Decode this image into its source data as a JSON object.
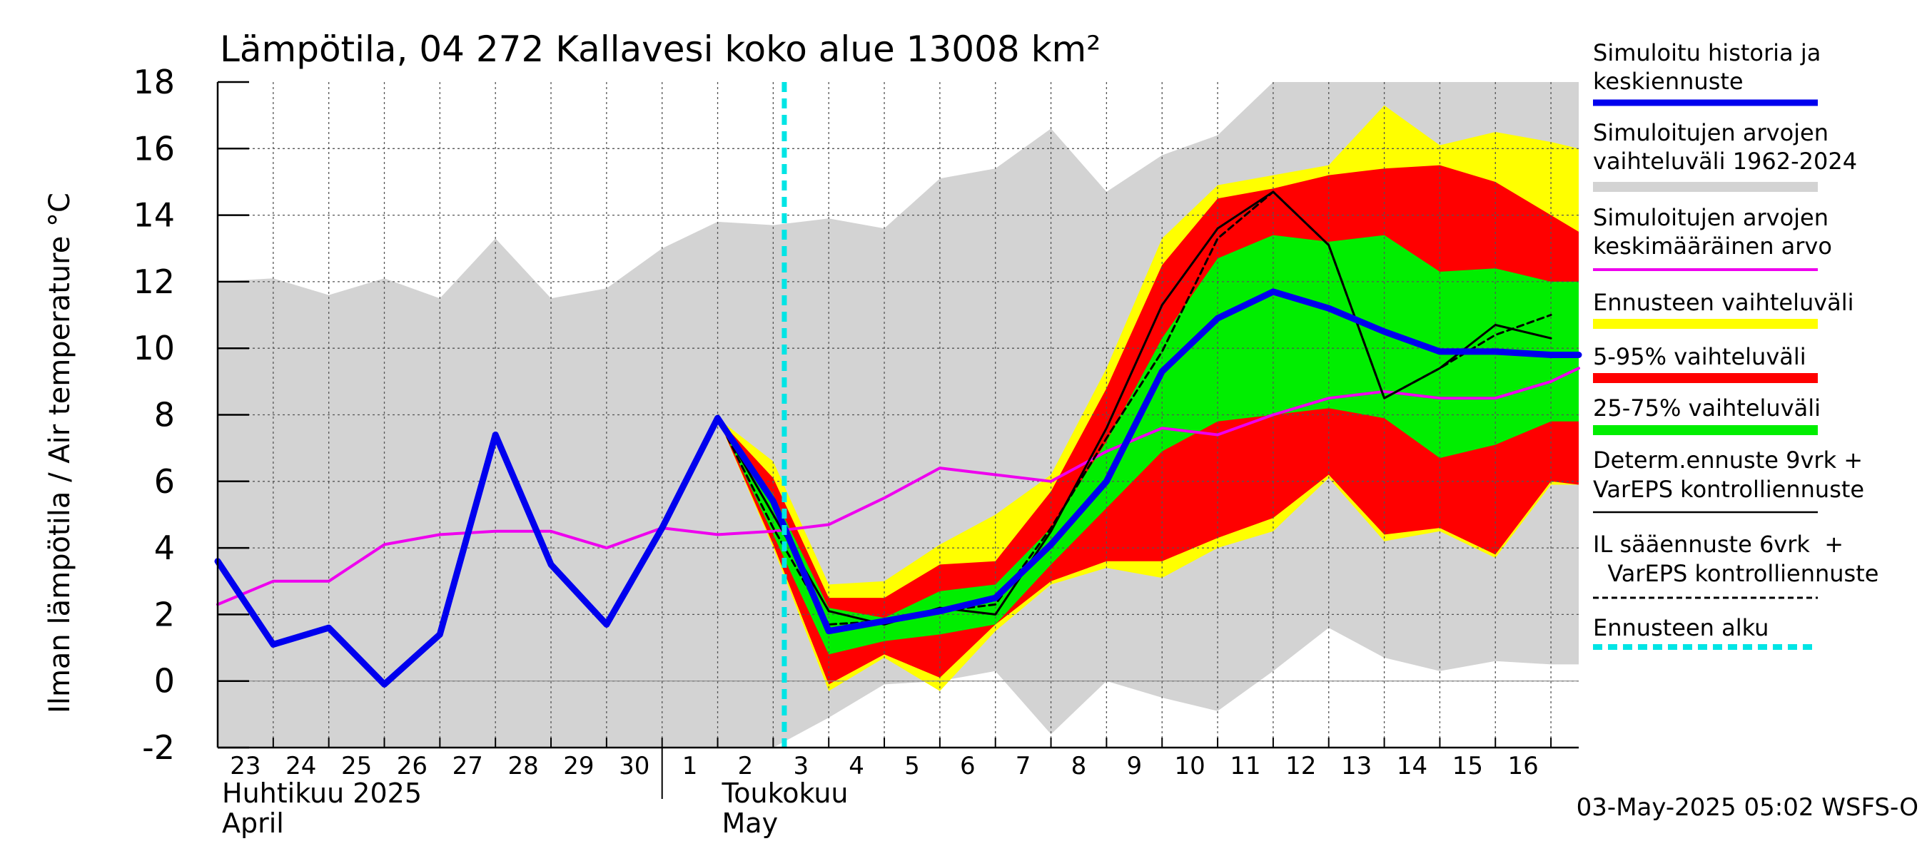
{
  "chart_data": {
    "type": "line",
    "title": "Lämpötila, 04 272 Kallavesi koko alue 13008 km²",
    "ylabel": "Ilman lämpötila / Air temperature   °C",
    "ylim": [
      -2,
      18
    ],
    "yticks": [
      -2,
      0,
      2,
      4,
      6,
      8,
      10,
      12,
      14,
      16,
      18
    ],
    "x_day_offsets": [
      0,
      1,
      2,
      3,
      4,
      5,
      6,
      7,
      8,
      9,
      10,
      11,
      12,
      13,
      14,
      15,
      16,
      17,
      18,
      19,
      20,
      21,
      22,
      23,
      24
    ],
    "x_range": [
      0,
      24.5
    ],
    "day_labels": [
      "23",
      "24",
      "25",
      "26",
      "27",
      "28",
      "29",
      "30",
      "1",
      "2",
      "3",
      "4",
      "5",
      "6",
      "7",
      "8",
      "9",
      "10",
      "11",
      "12",
      "13",
      "14",
      "15",
      "16"
    ],
    "month_labels": [
      {
        "fi": "Huhtikuu  2025",
        "en": "April",
        "day_offset": 0
      },
      {
        "fi": "Toukokuu",
        "en": "May",
        "day_offset": 9
      }
    ],
    "month_boundary_day_offset": 8,
    "forecast_start_day_offset": 10.2,
    "footer": "03-May-2025 05:02 WSFS-O",
    "colors": {
      "history_range": "#d3d3d3",
      "ensemble_range": "#ffff00",
      "p5_95": "#ff0000",
      "p25_75": "#00ee00",
      "simulated": "#0000ee",
      "mean": "#ee00ee",
      "determ": "#000000",
      "il_forecast": "#000000",
      "forecast_start": "#00e5e5",
      "grid": "#555555"
    },
    "bands": {
      "history_range": {
        "x": [
          0,
          1,
          2,
          3,
          4,
          5,
          6,
          7,
          8,
          9,
          10,
          11,
          12,
          13,
          14,
          15,
          16,
          17,
          18,
          19,
          20,
          21,
          22,
          23,
          24,
          24.5
        ],
        "upper": [
          12.0,
          12.1,
          11.6,
          12.1,
          11.5,
          13.3,
          11.5,
          11.8,
          13.0,
          13.8,
          13.7,
          13.9,
          13.6,
          15.1,
          15.4,
          16.6,
          14.7,
          15.8,
          16.4,
          18.0,
          18.0,
          18.0,
          18.0,
          18.0,
          18.0,
          18.0
        ],
        "lower": [
          -2.0,
          -2.0,
          -2.0,
          -2.0,
          -2.0,
          -2.0,
          -2.0,
          -2.0,
          -2.0,
          -2.0,
          -2.0,
          -1.1,
          -0.1,
          0.0,
          0.3,
          -1.6,
          0.0,
          -0.5,
          -0.9,
          0.3,
          1.6,
          0.7,
          0.3,
          0.6,
          0.5,
          0.5
        ]
      },
      "ensemble_range": {
        "x": [
          9,
          10,
          11,
          12,
          13,
          14,
          15,
          16,
          17,
          18,
          19,
          20,
          21,
          22,
          23,
          24,
          24.5
        ],
        "upper": [
          7.9,
          6.6,
          2.9,
          3.0,
          4.1,
          5.0,
          6.2,
          9.4,
          13.3,
          14.9,
          15.2,
          15.5,
          17.3,
          16.1,
          16.5,
          16.2,
          16.0
        ],
        "lower": [
          7.9,
          4.0,
          -0.3,
          0.7,
          -0.3,
          1.5,
          2.9,
          3.4,
          3.1,
          4.0,
          4.5,
          6.1,
          4.2,
          4.5,
          3.7,
          5.9,
          5.9
        ]
      },
      "p5_95": {
        "x": [
          9,
          10,
          11,
          12,
          13,
          14,
          15,
          16,
          17,
          18,
          19,
          20,
          21,
          22,
          23,
          24,
          24.5
        ],
        "upper": [
          7.9,
          6.1,
          2.5,
          2.5,
          3.5,
          3.6,
          5.7,
          8.8,
          12.5,
          14.5,
          14.8,
          15.2,
          15.4,
          15.5,
          15.0,
          14.0,
          13.5
        ],
        "lower": [
          7.9,
          4.1,
          -0.1,
          0.8,
          0.1,
          1.7,
          3.0,
          3.6,
          3.6,
          4.3,
          4.9,
          6.2,
          4.4,
          4.6,
          3.8,
          6.0,
          5.9
        ]
      },
      "p25_75": {
        "x": [
          9,
          10,
          11,
          12,
          13,
          14,
          15,
          16,
          17,
          18,
          19,
          20,
          21,
          22,
          23,
          24,
          24.5
        ],
        "upper": [
          7.9,
          5.6,
          2.2,
          1.9,
          2.7,
          2.9,
          4.6,
          7.2,
          10.3,
          12.7,
          13.4,
          13.2,
          13.4,
          12.3,
          12.4,
          12.0,
          12.0
        ],
        "lower": [
          7.9,
          4.4,
          0.8,
          1.2,
          1.4,
          1.7,
          3.5,
          5.2,
          6.9,
          7.8,
          8.0,
          8.2,
          7.9,
          6.7,
          7.1,
          7.8,
          7.8
        ]
      }
    },
    "series": [
      {
        "name": "Simuloitu historia ja keskiennuste",
        "key": "simulated",
        "x": [
          0,
          1,
          2,
          3,
          4,
          5,
          6,
          7,
          8,
          9,
          10,
          11,
          12,
          13,
          14,
          15,
          16,
          17,
          18,
          19,
          20,
          21,
          22,
          23,
          24,
          24.5
        ],
        "values": [
          3.6,
          1.1,
          1.6,
          -0.1,
          1.4,
          7.4,
          3.5,
          1.7,
          4.6,
          7.9,
          5.4,
          1.5,
          1.8,
          2.1,
          2.5,
          4.1,
          6.0,
          9.3,
          10.9,
          11.7,
          11.2,
          10.5,
          9.9,
          9.9,
          9.8,
          9.8
        ]
      },
      {
        "name": "Simuloitujen arvojen keskimääräinen arvo",
        "key": "mean",
        "x": [
          0,
          1,
          2,
          3,
          4,
          5,
          6,
          7,
          8,
          9,
          10,
          11,
          12,
          13,
          14,
          15,
          16,
          17,
          18,
          19,
          20,
          21,
          22,
          23,
          24,
          24.5
        ],
        "values": [
          2.3,
          3.0,
          3.0,
          4.1,
          4.4,
          4.5,
          4.5,
          4.0,
          4.6,
          4.4,
          4.5,
          4.7,
          5.5,
          6.4,
          6.2,
          6.0,
          6.9,
          7.6,
          7.4,
          8.0,
          8.5,
          8.7,
          8.5,
          8.5,
          9.0,
          9.4
        ]
      },
      {
        "name": "Determ.ennuste 9vrk + VarEPS kontrolliennuste",
        "key": "determ",
        "x": [
          9,
          10,
          11,
          12,
          13,
          14,
          15,
          16,
          17,
          18,
          19,
          20,
          21,
          22,
          23,
          24
        ],
        "values": [
          7.9,
          5.0,
          2.1,
          1.7,
          2.2,
          2.0,
          4.5,
          7.6,
          11.3,
          13.6,
          14.7,
          13.1,
          8.5,
          9.4,
          10.7,
          10.3
        ]
      },
      {
        "name": "IL sääennuste 6vrk + VarEPS kontrolliennuste",
        "key": "il_forecast",
        "x": [
          9,
          10,
          11,
          12,
          13,
          14,
          15,
          16,
          17,
          18,
          19,
          20,
          21,
          22,
          23,
          24
        ],
        "values": [
          7.9,
          4.6,
          1.7,
          1.8,
          2.1,
          2.3,
          4.6,
          7.3,
          9.9,
          13.3,
          14.7,
          13.1,
          8.5,
          9.4,
          10.4,
          11.0
        ]
      }
    ],
    "legend": {
      "placement": "right",
      "entries": [
        {
          "key": "simulated",
          "lines": [
            "Simuloitu historia ja",
            "keskiennuste"
          ],
          "style": "thick-line"
        },
        {
          "key": "history_range",
          "lines": [
            "Simuloitujen arvojen",
            "vaihteluväli 1962-2024"
          ],
          "style": "band"
        },
        {
          "key": "mean",
          "lines": [
            "Simuloitujen arvojen",
            "keskimääräinen arvo"
          ],
          "style": "line"
        },
        {
          "key": "ensemble_range",
          "lines": [
            "Ennusteen vaihteluväli"
          ],
          "style": "band"
        },
        {
          "key": "p5_95",
          "lines": [
            "5-95% vaihteluväli"
          ],
          "style": "band"
        },
        {
          "key": "p25_75",
          "lines": [
            "25-75% vaihteluväli"
          ],
          "style": "band"
        },
        {
          "key": "determ",
          "lines": [
            "Determ.ennuste 9vrk +",
            "VarEPS kontrolliennuste"
          ],
          "style": "thin-line"
        },
        {
          "key": "il_forecast",
          "lines": [
            "IL sääennuste 6vrk  +",
            "  VarEPS kontrolliennuste"
          ],
          "style": "dashed-line"
        },
        {
          "key": "forecast_start",
          "lines": [
            "Ennusteen alku"
          ],
          "style": "dashed-thick"
        }
      ]
    }
  }
}
